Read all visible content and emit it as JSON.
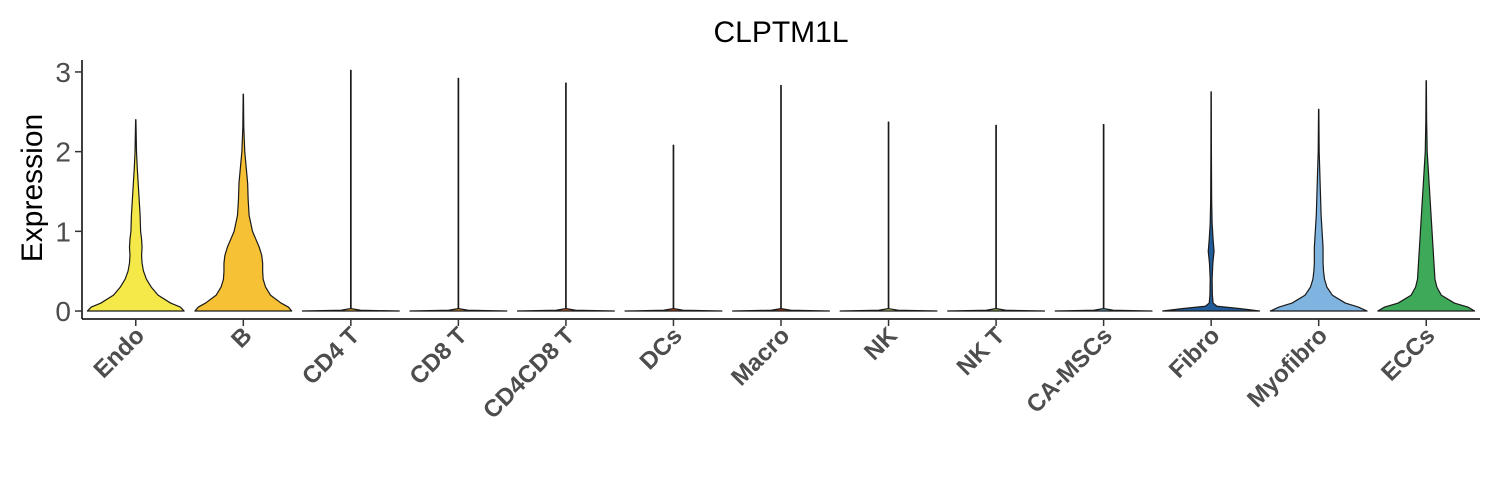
{
  "chart_data": {
    "type": "violin",
    "title": "CLPTM1L",
    "ylabel": "Expression",
    "xlabel": "",
    "ylim": [
      -0.1,
      3.15
    ],
    "yticks": [
      0,
      1,
      2,
      3
    ],
    "grid": false,
    "legend": "none",
    "categories": [
      "Endo",
      "B",
      "CD4 T",
      "CD8 T",
      "CD4CD8 T",
      "DCs",
      "Macro",
      "NK",
      "NK T",
      "CA-MSCs",
      "Fibro",
      "Myofibro",
      "ECCs"
    ],
    "colors": [
      "#F5E94A",
      "#F7C136",
      "#F3B12E",
      "#E58B2C",
      "#D9651F",
      "#C7521E",
      "#A8371A",
      "#B8D66A",
      "#8FC257",
      "#5DA3C0",
      "#1F5C99",
      "#7FB3E0",
      "#3FA95A"
    ],
    "max_values": [
      2.4,
      2.72,
      3.02,
      2.92,
      2.86,
      2.08,
      2.83,
      2.37,
      2.33,
      2.34,
      2.75,
      2.53,
      2.89
    ],
    "density_profiles": [
      [
        [
          0,
          1.0
        ],
        [
          0.05,
          0.92
        ],
        [
          0.1,
          0.72
        ],
        [
          0.2,
          0.46
        ],
        [
          0.3,
          0.32
        ],
        [
          0.4,
          0.22
        ],
        [
          0.5,
          0.16
        ],
        [
          0.6,
          0.13
        ],
        [
          0.7,
          0.12
        ],
        [
          0.8,
          0.13
        ],
        [
          0.9,
          0.12
        ],
        [
          1.0,
          0.1
        ],
        [
          1.2,
          0.09
        ],
        [
          1.4,
          0.07
        ],
        [
          1.6,
          0.05
        ],
        [
          1.8,
          0.03
        ],
        [
          2.0,
          0.015
        ],
        [
          2.4,
          0.003
        ]
      ],
      [
        [
          0,
          1.0
        ],
        [
          0.05,
          0.93
        ],
        [
          0.1,
          0.78
        ],
        [
          0.2,
          0.56
        ],
        [
          0.3,
          0.46
        ],
        [
          0.4,
          0.41
        ],
        [
          0.5,
          0.4
        ],
        [
          0.6,
          0.4
        ],
        [
          0.7,
          0.38
        ],
        [
          0.8,
          0.33
        ],
        [
          0.9,
          0.26
        ],
        [
          1.0,
          0.19
        ],
        [
          1.2,
          0.12
        ],
        [
          1.4,
          0.1
        ],
        [
          1.6,
          0.09
        ],
        [
          1.8,
          0.06
        ],
        [
          2.0,
          0.03
        ],
        [
          2.3,
          0.01
        ],
        [
          2.72,
          0.003
        ]
      ],
      [
        [
          0,
          1.0
        ],
        [
          0.01,
          0.2
        ],
        [
          0.03,
          0.005
        ],
        [
          3.02,
          0.005
        ]
      ],
      [
        [
          0,
          1.0
        ],
        [
          0.01,
          0.2
        ],
        [
          0.03,
          0.005
        ],
        [
          2.92,
          0.005
        ]
      ],
      [
        [
          0,
          1.0
        ],
        [
          0.01,
          0.2
        ],
        [
          0.03,
          0.005
        ],
        [
          2.86,
          0.005
        ]
      ],
      [
        [
          0,
          1.0
        ],
        [
          0.01,
          0.2
        ],
        [
          0.03,
          0.005
        ],
        [
          2.08,
          0.005
        ]
      ],
      [
        [
          0,
          1.0
        ],
        [
          0.01,
          0.2
        ],
        [
          0.03,
          0.005
        ],
        [
          2.83,
          0.005
        ]
      ],
      [
        [
          0,
          1.0
        ],
        [
          0.01,
          0.2
        ],
        [
          0.03,
          0.005
        ],
        [
          2.37,
          0.005
        ]
      ],
      [
        [
          0,
          1.0
        ],
        [
          0.01,
          0.2
        ],
        [
          0.03,
          0.005
        ],
        [
          2.33,
          0.005
        ]
      ],
      [
        [
          0,
          1.0
        ],
        [
          0.01,
          0.2
        ],
        [
          0.03,
          0.005
        ],
        [
          2.34,
          0.005
        ]
      ],
      [
        [
          0,
          1.0
        ],
        [
          0.03,
          0.6
        ],
        [
          0.06,
          0.12
        ],
        [
          0.1,
          0.04
        ],
        [
          0.2,
          0.025
        ],
        [
          0.4,
          0.02
        ],
        [
          0.6,
          0.035
        ],
        [
          0.75,
          0.06
        ],
        [
          0.9,
          0.04
        ],
        [
          1.1,
          0.02
        ],
        [
          1.4,
          0.01
        ],
        [
          2.0,
          0.005
        ],
        [
          2.75,
          0.003
        ]
      ],
      [
        [
          0,
          1.0
        ],
        [
          0.05,
          0.82
        ],
        [
          0.1,
          0.55
        ],
        [
          0.2,
          0.28
        ],
        [
          0.3,
          0.17
        ],
        [
          0.4,
          0.12
        ],
        [
          0.5,
          0.1
        ],
        [
          0.6,
          0.09
        ],
        [
          0.7,
          0.09
        ],
        [
          0.8,
          0.09
        ],
        [
          0.9,
          0.08
        ],
        [
          1.0,
          0.07
        ],
        [
          1.2,
          0.05
        ],
        [
          1.4,
          0.04
        ],
        [
          1.6,
          0.03
        ],
        [
          1.8,
          0.02
        ],
        [
          2.0,
          0.01
        ],
        [
          2.53,
          0.003
        ]
      ],
      [
        [
          0,
          1.0
        ],
        [
          0.05,
          0.86
        ],
        [
          0.1,
          0.58
        ],
        [
          0.2,
          0.31
        ],
        [
          0.3,
          0.22
        ],
        [
          0.4,
          0.18
        ],
        [
          0.5,
          0.17
        ],
        [
          0.6,
          0.16
        ],
        [
          0.7,
          0.15
        ],
        [
          0.8,
          0.14
        ],
        [
          0.9,
          0.13
        ],
        [
          1.0,
          0.12
        ],
        [
          1.2,
          0.1
        ],
        [
          1.4,
          0.08
        ],
        [
          1.6,
          0.06
        ],
        [
          1.8,
          0.04
        ],
        [
          2.0,
          0.02
        ],
        [
          2.4,
          0.008
        ],
        [
          2.89,
          0.003
        ]
      ]
    ]
  }
}
